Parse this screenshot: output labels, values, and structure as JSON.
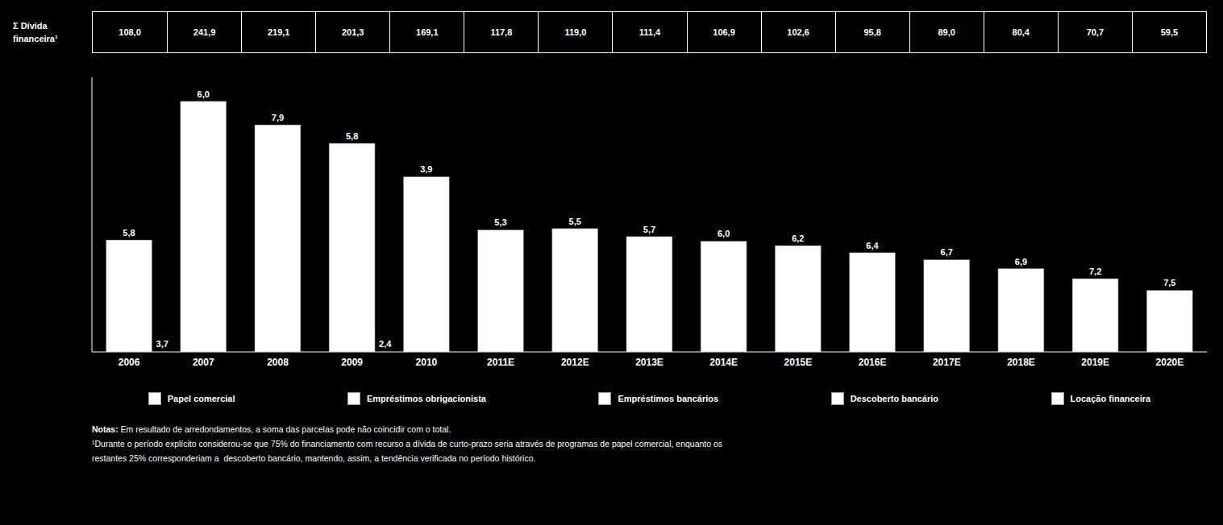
{
  "chart_data": {
    "type": "bar",
    "categories": [
      "2006",
      "2007",
      "2008",
      "2009",
      "2010",
      "2011E",
      "2012E",
      "2013E",
      "2014E",
      "2015E",
      "2016E",
      "2017E",
      "2018E",
      "2019E",
      "2020E"
    ],
    "values": [
      108.0,
      241.9,
      219.1,
      201.3,
      169.1,
      117.8,
      119.0,
      111.4,
      106.9,
      102.6,
      95.8,
      89.0,
      80.4,
      70.7,
      59.5
    ],
    "value_labels": [
      "108,0",
      "241,9",
      "219,1",
      "201,3",
      "169,1",
      "117,8",
      "119,0",
      "111,4",
      "106,9",
      "102,6",
      "95,8",
      "89,0",
      "80,4",
      "70,7",
      "59,5"
    ],
    "table_label": [
      "Σ Dívida",
      "financeira¹"
    ],
    "color": "#ffffff",
    "background_color": "#000000",
    "ylim": [
      0,
      265
    ],
    "tick_labels": "x",
    "grid": false,
    "legend_entries": [
      {
        "name": "Papel comercial",
        "color": "#ffffff"
      },
      {
        "name": "Empréstimos obrigacionista",
        "color": "#ffffff"
      },
      {
        "name": "Empréstimos bancários",
        "color": "#ffffff"
      },
      {
        "name": "Descoberto bancário",
        "color": "#ffffff"
      },
      {
        "name": "Locação financeira",
        "color": "#ffffff"
      }
    ],
    "annotations": [
      {
        "category": "2006",
        "position": "top",
        "label": "5,8"
      },
      {
        "category": "2007",
        "position": "top",
        "label": "6,0"
      },
      {
        "category": "2008",
        "position": "top",
        "label": "7,9"
      },
      {
        "category": "2009",
        "position": "top",
        "label": "5,8"
      },
      {
        "category": "2010",
        "position": "top",
        "label": "3,9"
      },
      {
        "category": "2011E",
        "position": "top",
        "label": "5,3"
      },
      {
        "category": "2012E",
        "position": "top",
        "label": "5,5"
      },
      {
        "category": "2013E",
        "position": "top",
        "label": "5,7"
      },
      {
        "category": "2014E",
        "position": "top",
        "label": "6,0"
      },
      {
        "category": "2015E",
        "position": "top",
        "label": "6,2"
      },
      {
        "category": "2016E",
        "position": "top",
        "label": "6,4"
      },
      {
        "category": "2017E",
        "position": "top",
        "label": "6,7"
      },
      {
        "category": "2018E",
        "position": "top",
        "label": "6,9"
      },
      {
        "category": "2019E",
        "position": "top",
        "label": "7,2"
      },
      {
        "category": "2020E",
        "position": "top",
        "label": "7,5"
      },
      {
        "category": "2006",
        "position": "base",
        "label": "3,7"
      },
      {
        "category": "2009",
        "position": "base",
        "label": "2,4"
      }
    ],
    "notes_title": "Notas:",
    "notes": [
      " Em resultado de arredondamentos, a soma das parcelas pode não coincidir com o total.",
      "¹Durante o período explícito considerou-se que 75% do financiamento com recurso a dívida de curto-prazo seria através de programas de papel comercial, enquanto os",
      "restantes 25% corresponderiam a  descoberto bancário, mantendo, assim, a tendência verificada no período histórico."
    ]
  }
}
